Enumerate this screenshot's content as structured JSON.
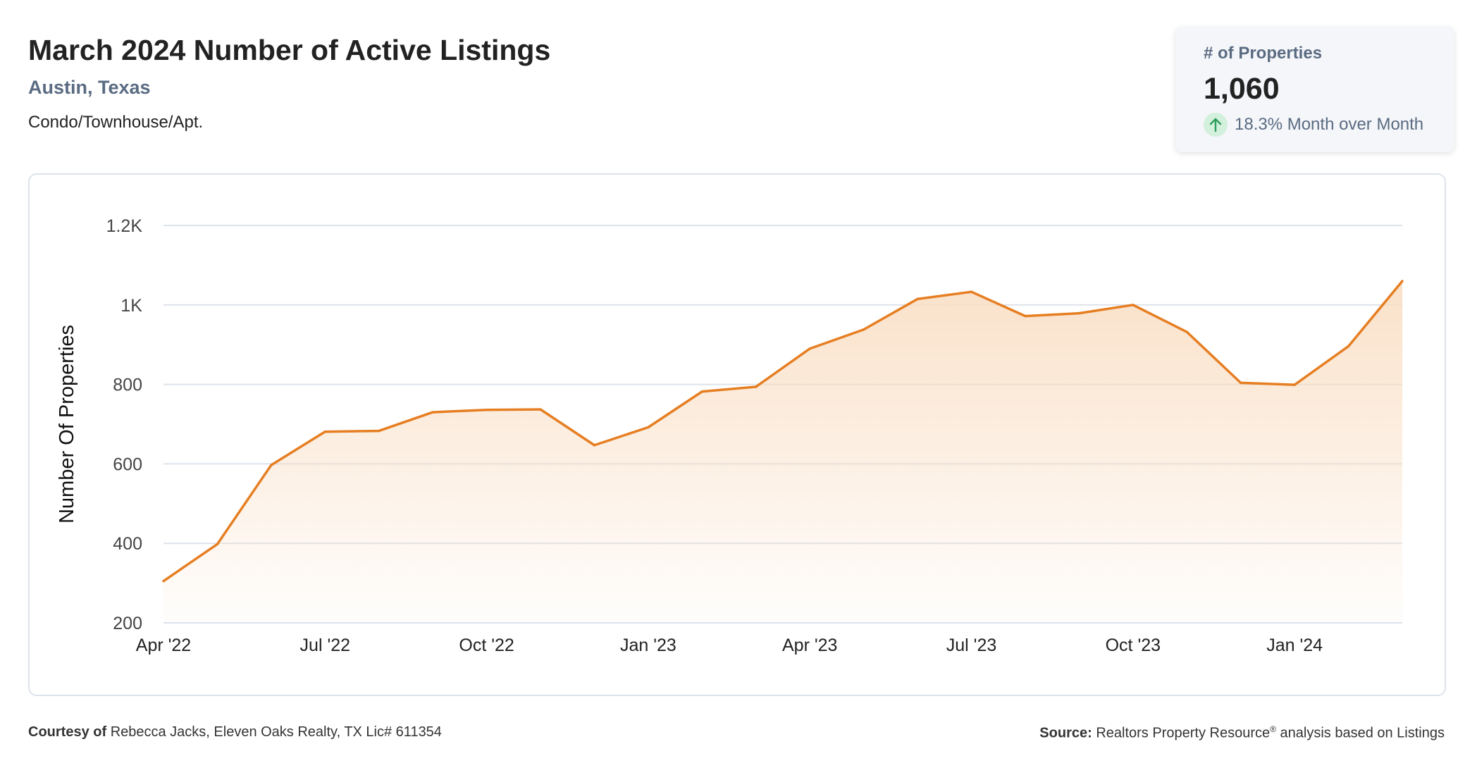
{
  "header": {
    "title": "March 2024 Number of Active Listings",
    "location": "Austin, Texas",
    "property_type": "Condo/Townhouse/Apt."
  },
  "stat_card": {
    "label": "# of Properties",
    "value": "1,060",
    "change_icon": "arrow-up-icon",
    "change_text": "18.3% Month over Month"
  },
  "colors": {
    "line": "#e67e22",
    "area": "#f9dcc0",
    "grid": "#dde3ec",
    "title": "#222222",
    "muted": "#5a6b82",
    "arrow_green": "#2e9e5b"
  },
  "chart_data": {
    "type": "area",
    "x": [
      "Apr '22",
      "May '22",
      "Jun '22",
      "Jul '22",
      "Aug '22",
      "Sep '22",
      "Oct '22",
      "Nov '22",
      "Dec '22",
      "Jan '23",
      "Feb '23",
      "Mar '23",
      "Apr '23",
      "May '23",
      "Jun '23",
      "Jul '23",
      "Aug '23",
      "Sep '23",
      "Oct '23",
      "Nov '23",
      "Dec '23",
      "Jan '24",
      "Feb '24",
      "Mar '24"
    ],
    "series": [
      {
        "values": [
          305,
          398,
          597,
          681,
          683,
          730,
          736,
          737,
          647,
          692,
          782,
          794,
          890,
          938,
          1015,
          1033,
          972,
          979,
          1000,
          932,
          804,
          799,
          896,
          1060
        ]
      }
    ],
    "x_tick_labels": [
      "Apr '22",
      "Jul '22",
      "Oct '22",
      "Jan '23",
      "Apr '23",
      "Jul '23",
      "Oct '23",
      "Jan '24"
    ],
    "y_ticks": [
      200,
      400,
      600,
      800,
      1000,
      1200
    ],
    "y_tick_labels": [
      "200",
      "400",
      "600",
      "800",
      "1K",
      "1.2K"
    ],
    "ylim": [
      200,
      1200
    ],
    "ylabel": "Number Of Properties",
    "xlabel": "",
    "grid": true
  },
  "footer": {
    "courtesy_label": "Courtesy of",
    "courtesy_text": "Rebecca Jacks, Eleven Oaks Realty, TX Lic# 611354",
    "source_label": "Source:",
    "source_text": "Realtors Property Resource",
    "source_mark": "®",
    "source_suffix": "analysis based on Listings"
  }
}
